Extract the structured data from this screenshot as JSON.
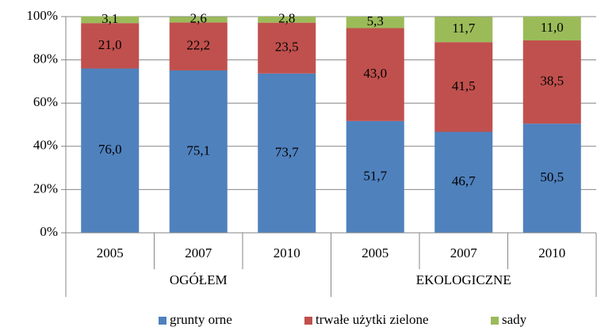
{
  "chart_data": {
    "type": "stacked-bar",
    "groups": [
      {
        "label": "OGÓŁEM",
        "categories": [
          "2005",
          "2007",
          "2010"
        ]
      },
      {
        "label": "EKOLOGICZNE",
        "categories": [
          "2005",
          "2007",
          "2010"
        ]
      }
    ],
    "series": [
      {
        "name": "grunty orne",
        "color": "#4f81bd",
        "values": [
          76.0,
          75.1,
          73.7,
          51.7,
          46.7,
          50.5
        ],
        "value_labels": [
          "76,0",
          "75,1",
          "73,7",
          "51,7",
          "46,7",
          "50,5"
        ]
      },
      {
        "name": "trwałe użytki zielone",
        "color": "#c0504d",
        "values": [
          21.0,
          22.2,
          23.5,
          43.0,
          41.5,
          38.5
        ],
        "value_labels": [
          "21,0",
          "22,2",
          "23,5",
          "43,0",
          "41,5",
          "38,5"
        ]
      },
      {
        "name": "sady",
        "color": "#9bbb59",
        "values": [
          3.1,
          2.6,
          2.8,
          5.3,
          11.7,
          11.0
        ],
        "value_labels": [
          "3,1",
          "2,6",
          "2,8",
          "5,3",
          "11,7",
          "11,0"
        ]
      }
    ],
    "ylim": [
      0,
      100
    ],
    "yticks": [
      {
        "value": 0,
        "label": "0%"
      },
      {
        "value": 20,
        "label": "20%"
      },
      {
        "value": 40,
        "label": "40%"
      },
      {
        "value": 60,
        "label": "60%"
      },
      {
        "value": 80,
        "label": "80%"
      },
      {
        "value": 100,
        "label": "100%"
      }
    ],
    "grid": true,
    "legend": "bottom"
  }
}
